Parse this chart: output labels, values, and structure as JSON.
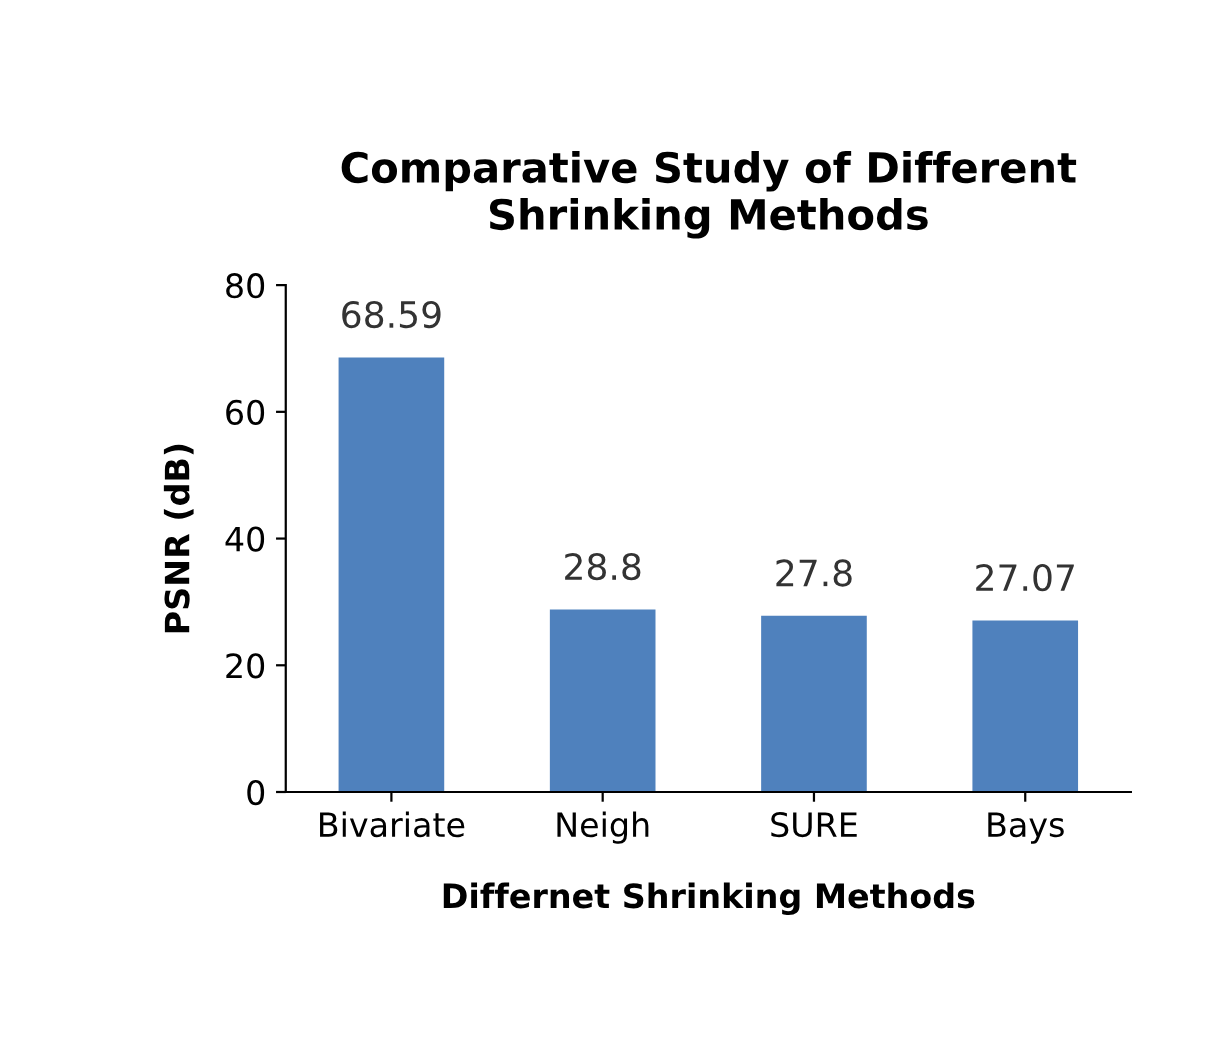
{
  "chart_data": {
    "type": "bar",
    "title": "Comparative Study of Different\nShrinking Methods",
    "xlabel": "Differnet Shrinking Methods",
    "ylabel": "PSNR (dB)",
    "categories": [
      "Bivariate",
      "Neigh",
      "SURE",
      "Bays"
    ],
    "values": [
      68.59,
      28.8,
      27.8,
      27.07
    ],
    "color": "#4f81bd",
    "ylim": [
      0,
      80
    ],
    "yticks": [
      0,
      20,
      40,
      60,
      80
    ],
    "grid": false,
    "data_labels": true
  }
}
